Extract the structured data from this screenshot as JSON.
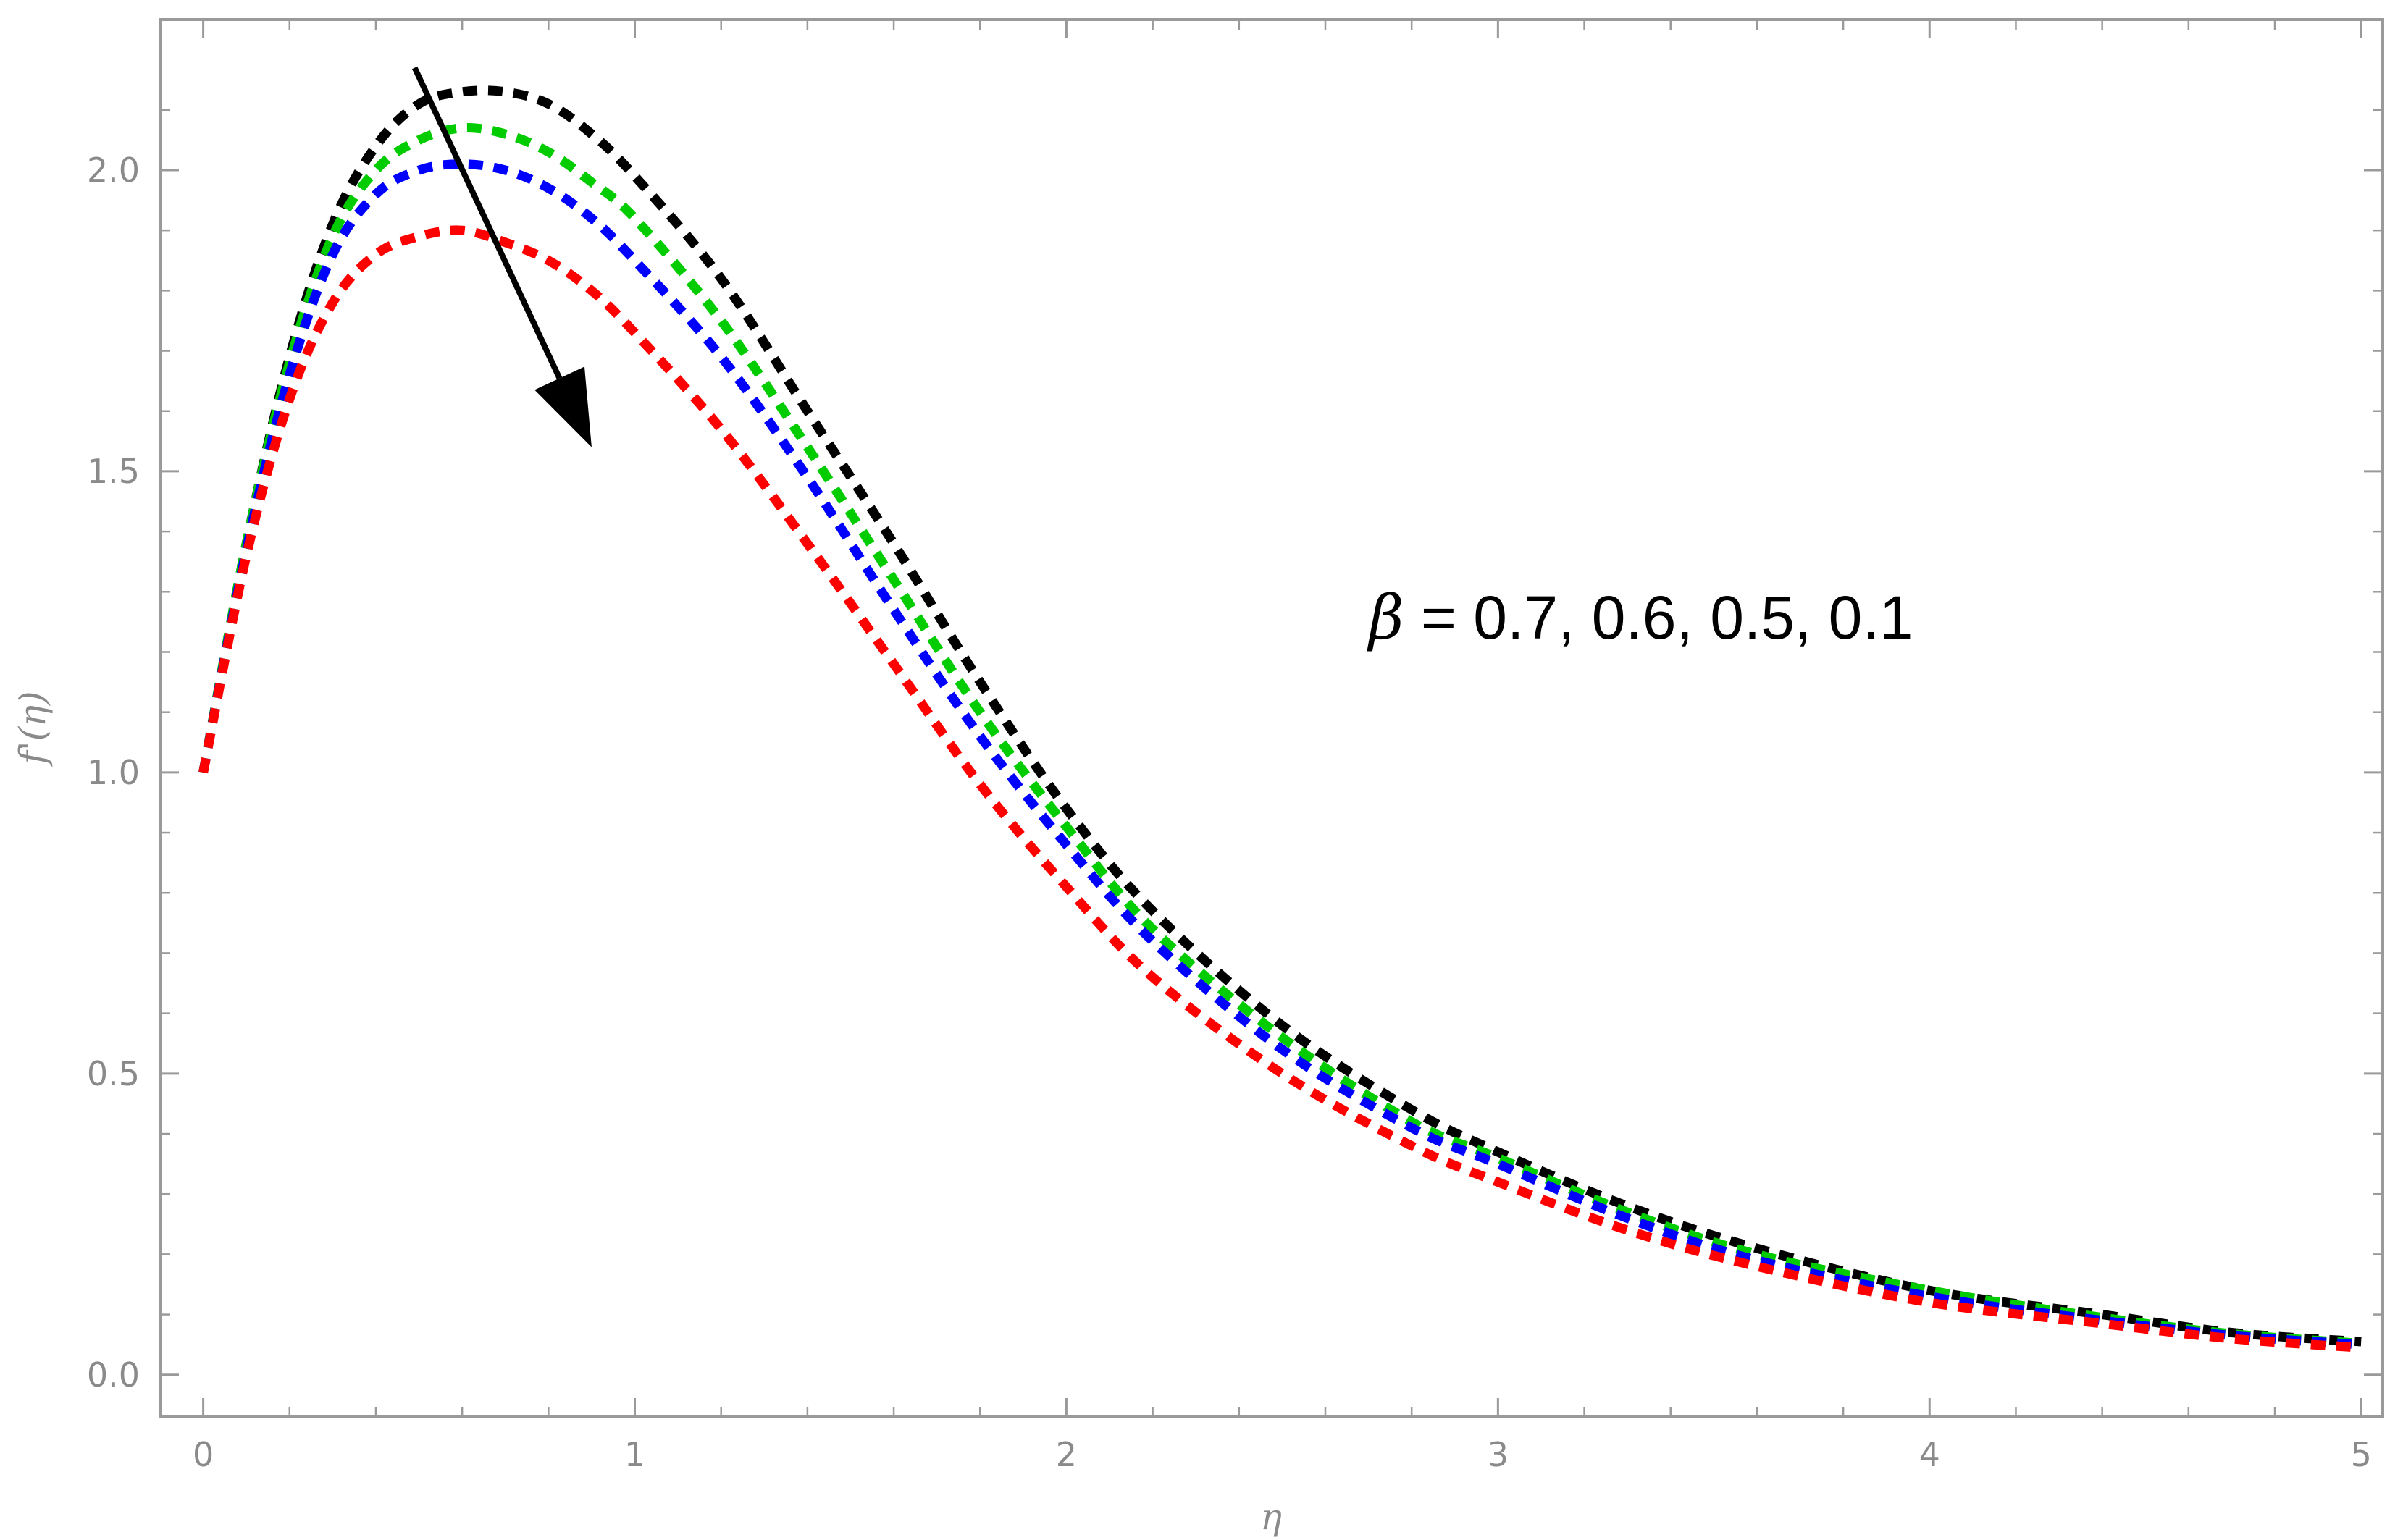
{
  "chart_data": {
    "type": "line",
    "title": "",
    "xlabel": "η",
    "ylabel": "f'(η)",
    "xlim": [
      -0.1,
      5.05
    ],
    "ylim": [
      -0.07,
      2.25
    ],
    "x_ticks": [
      "0",
      "1",
      "2",
      "3",
      "4",
      "5"
    ],
    "y_ticks": [
      "0.0",
      "0.5",
      "1.0",
      "1.5",
      "2.0"
    ],
    "grid": false,
    "annotation": {
      "symbol": "β",
      "text": " = 0.7, 0.6, 0.5, 0.1"
    },
    "arrow": {
      "from": [
        0.49,
        2.17
      ],
      "to": [
        0.9,
        1.54
      ]
    },
    "series": [
      {
        "color": "#000000",
        "x": [
          0,
          0.1,
          0.2,
          0.3,
          0.4,
          0.5,
          0.6,
          0.7,
          0.8,
          0.9,
          1.0,
          1.2,
          1.4,
          1.6,
          1.8,
          2.0,
          2.2,
          2.5,
          2.8,
          3.0,
          3.3,
          3.6,
          4.0,
          4.4,
          4.7,
          5.0
        ],
        "y": [
          1.0,
          1.38,
          1.69,
          1.91,
          2.04,
          2.11,
          2.13,
          2.13,
          2.11,
          2.06,
          1.99,
          1.82,
          1.6,
          1.38,
          1.15,
          0.94,
          0.77,
          0.58,
          0.44,
          0.37,
          0.28,
          0.21,
          0.14,
          0.1,
          0.07,
          0.055
        ]
      },
      {
        "color": "#00cc00",
        "x": [
          0,
          0.1,
          0.2,
          0.3,
          0.4,
          0.5,
          0.6,
          0.7,
          0.8,
          0.9,
          1.0,
          1.2,
          1.4,
          1.6,
          1.8,
          2.0,
          2.2,
          2.5,
          2.8,
          3.0,
          3.3,
          3.6,
          4.0,
          4.4,
          4.7,
          5.0
        ],
        "y": [
          1.0,
          1.38,
          1.68,
          1.89,
          2.0,
          2.05,
          2.07,
          2.06,
          2.03,
          1.98,
          1.92,
          1.75,
          1.54,
          1.32,
          1.1,
          0.91,
          0.74,
          0.56,
          0.42,
          0.36,
          0.27,
          0.2,
          0.14,
          0.095,
          0.068,
          0.052
        ]
      },
      {
        "color": "#0000ff",
        "x": [
          0,
          0.1,
          0.2,
          0.3,
          0.4,
          0.5,
          0.6,
          0.7,
          0.8,
          0.9,
          1.0,
          1.2,
          1.4,
          1.6,
          1.8,
          2.0,
          2.2,
          2.5,
          2.8,
          3.0,
          3.3,
          3.6,
          4.0,
          4.4,
          4.7,
          5.0
        ],
        "y": [
          1.0,
          1.37,
          1.66,
          1.86,
          1.96,
          2.0,
          2.01,
          2.0,
          1.97,
          1.92,
          1.85,
          1.69,
          1.49,
          1.27,
          1.06,
          0.88,
          0.72,
          0.54,
          0.41,
          0.35,
          0.26,
          0.19,
          0.13,
          0.09,
          0.065,
          0.05
        ]
      },
      {
        "color": "#ff0000",
        "x": [
          0,
          0.1,
          0.2,
          0.3,
          0.4,
          0.5,
          0.6,
          0.7,
          0.8,
          0.9,
          1.0,
          1.2,
          1.4,
          1.6,
          1.8,
          2.0,
          2.2,
          2.5,
          2.8,
          3.0,
          3.3,
          3.6,
          4.0,
          4.4,
          4.7,
          5.0
        ],
        "y": [
          1.0,
          1.36,
          1.62,
          1.78,
          1.86,
          1.89,
          1.9,
          1.88,
          1.85,
          1.8,
          1.73,
          1.57,
          1.38,
          1.18,
          0.98,
          0.81,
          0.66,
          0.5,
          0.38,
          0.32,
          0.24,
          0.18,
          0.12,
          0.085,
          0.06,
          0.045
        ]
      }
    ]
  }
}
